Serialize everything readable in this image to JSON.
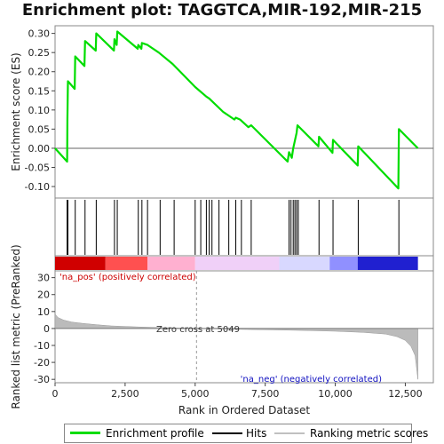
{
  "title": "Enrichment plot: TAGGTCA,MIR-192,MIR-215",
  "chart_data": [
    {
      "type": "line",
      "ylabel": "Enrichment score (ES)",
      "ylim": [
        -0.13,
        0.32
      ],
      "xlim": [
        0,
        13500
      ],
      "y_ticks": [
        "0.30",
        "0.25",
        "0.20",
        "0.15",
        "0.10",
        "0.05",
        "0.00",
        "-0.05",
        "-0.10"
      ],
      "series": [
        {
          "name": "Enrichment profile",
          "color": "#00dd00",
          "x": [
            0,
            430,
            440,
            460,
            700,
            720,
            1050,
            1070,
            1450,
            1470,
            2100,
            2120,
            2200,
            2220,
            2950,
            2970,
            3080,
            3100,
            3300,
            3700,
            4200,
            5000,
            5400,
            5500,
            6000,
            6400,
            6450,
            6600,
            6900,
            7000,
            8300,
            8350,
            8450,
            8500,
            8560,
            8620,
            8650,
            9400,
            9420,
            9900,
            9920,
            10800,
            10820,
            12250,
            12270,
            12950
          ],
          "y": [
            0.0,
            -0.035,
            0.075,
            0.175,
            0.155,
            0.24,
            0.215,
            0.28,
            0.255,
            0.3,
            0.255,
            0.285,
            0.27,
            0.305,
            0.26,
            0.27,
            0.26,
            0.275,
            0.27,
            0.25,
            0.22,
            0.16,
            0.135,
            0.13,
            0.095,
            0.075,
            0.08,
            0.075,
            0.055,
            0.06,
            -0.035,
            -0.01,
            -0.025,
            0.0,
            0.02,
            0.04,
            0.06,
            0.005,
            0.03,
            -0.012,
            0.022,
            -0.045,
            0.005,
            -0.105,
            0.05,
            0.0
          ]
        }
      ]
    },
    {
      "type": "scatter",
      "name": "Hits",
      "x": [
        430,
        460,
        720,
        1070,
        1470,
        2120,
        2220,
        2970,
        3100,
        3300,
        3750,
        4250,
        5000,
        5200,
        5400,
        5500,
        5600,
        5850,
        6200,
        6450,
        6650,
        7000,
        8350,
        8420,
        8500,
        8560,
        8620,
        8680,
        9420,
        9920,
        10820,
        12270
      ]
    },
    {
      "type": "heatmap",
      "name": "Ranking metric scores",
      "colors": [
        "#d00000",
        "#ff5050",
        "#ffb0d0",
        "#f0d0f8",
        "#d8d8ff",
        "#9090ff",
        "#2020d0"
      ]
    },
    {
      "type": "area",
      "ylabel": "Ranked list metric (PreRanked)",
      "xlabel": "Rank in Ordered Dataset",
      "ylim": [
        -32,
        34
      ],
      "xlim": [
        0,
        13500
      ],
      "y_ticks": [
        "30",
        "20",
        "10",
        "0",
        "-10",
        "-20",
        "-30"
      ],
      "x_ticks": [
        "0",
        "2,500",
        "5,000",
        "7,500",
        "10,000",
        "12,500"
      ],
      "series": [
        {
          "name": "Ranking metric scores",
          "x": [
            0,
            100,
            300,
            600,
            1000,
            1500,
            2000,
            3000,
            4000,
            5049,
            6000,
            7000,
            8000,
            9000,
            10000,
            11000,
            11800,
            12200,
            12500,
            12700,
            12850,
            12950
          ],
          "y": [
            8.5,
            6.5,
            5.0,
            3.8,
            3.0,
            2.2,
            1.5,
            0.9,
            0.4,
            0.0,
            -0.3,
            -0.6,
            -0.9,
            -1.2,
            -1.6,
            -2.3,
            -3.3,
            -4.8,
            -7.0,
            -10.5,
            -16.0,
            -30.0
          ]
        }
      ],
      "annotations": {
        "zero_cross": "Zero cross at 5049",
        "zero_cross_x": 5049,
        "pos_label": "'na_pos' (positively correlated)",
        "neg_label": "'na_neg' (negatively correlated)"
      }
    }
  ],
  "legend": {
    "items": [
      {
        "label": "Enrichment profile",
        "color": "#00dd00"
      },
      {
        "label": "Hits",
        "color": "#000000"
      },
      {
        "label": "Ranking metric scores",
        "color": "#c0c0c0"
      }
    ]
  }
}
